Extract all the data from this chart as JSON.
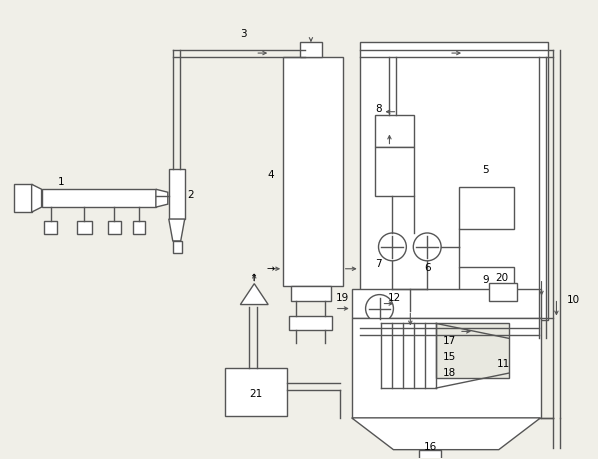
{
  "bg_color": "#f0efe8",
  "lc": "#555555",
  "lw": 1.0,
  "fig_w": 5.98,
  "fig_h": 4.6,
  "dpi": 100
}
